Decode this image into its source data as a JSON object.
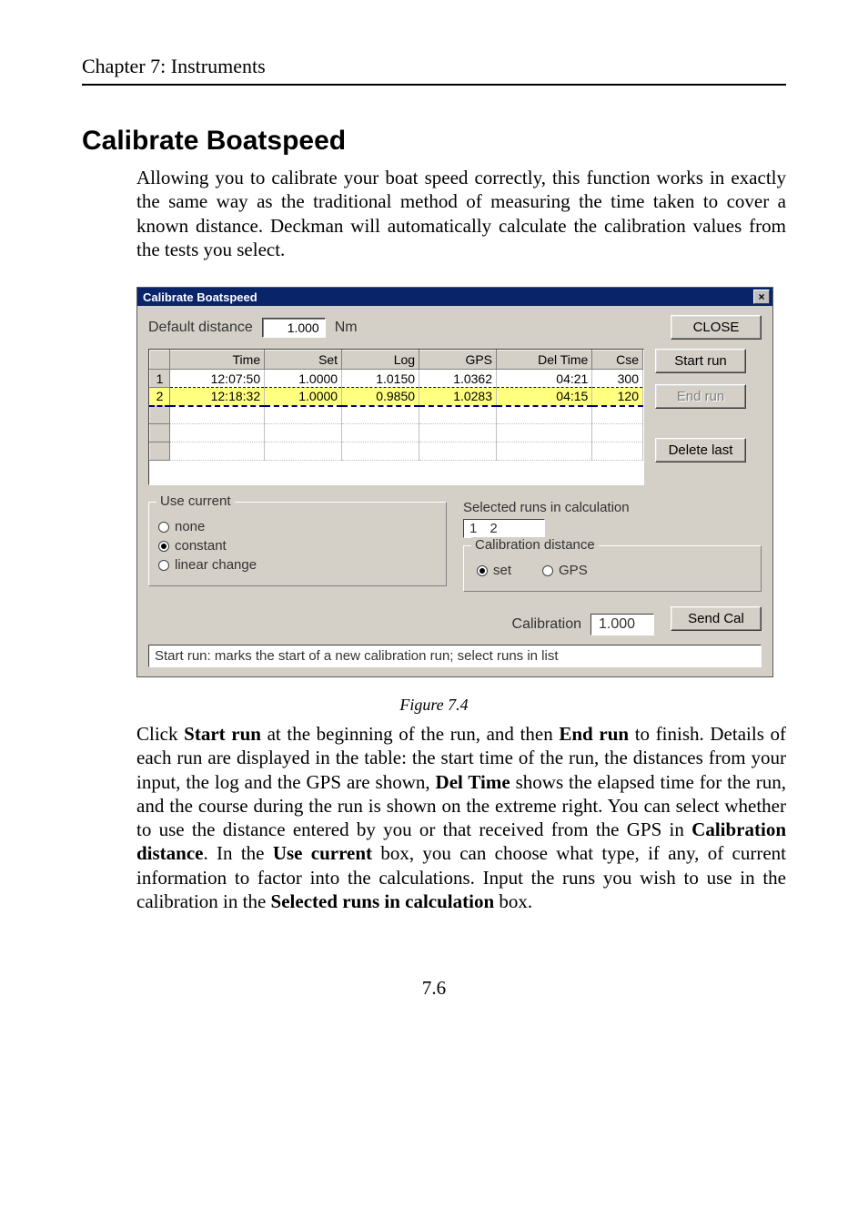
{
  "page": {
    "chapter_header": "Chapter 7: Instruments",
    "heading": "Calibrate Boatspeed",
    "intro": "Allowing you to calibrate your boat speed correctly, this function works in exactly the same way as the traditional method of measuring the time taken to cover a known distance. Deckman will automatically calculate the calibration values from the tests you select.",
    "figure_caption": "Figure 7.4",
    "body": "Click <b>Start run</b> at the beginning of the run, and then <b>End run</b> to finish. Details of each run are displayed in the table: the start time of the run, the distances from your input, the log and the GPS are shown, <b>Del Time</b> shows the elapsed time for the run, and the course during the run is shown on the extreme right. You can select whether to use the distance entered by you or that received from the GPS in <b>Calibration distance</b>. In the <b>Use current</b> box, you can choose what type, if any, of current information to factor into the calculations. Input the runs you wish to use in the calibration in the <b>Selected runs in calculation</b> box.",
    "page_number": "7.6"
  },
  "dialog": {
    "title": "Calibrate Boatspeed",
    "default_distance_label": "Default distance",
    "default_distance_value": "1.000",
    "default_distance_unit": "Nm",
    "close_label": "CLOSE",
    "buttons": {
      "start_run": "Start run",
      "end_run": "End run",
      "delete_last": "Delete last",
      "send_cal": "Send Cal"
    },
    "table": {
      "columns": [
        "",
        "Time",
        "Set",
        "Log",
        "GPS",
        "Del Time",
        "Cse"
      ],
      "rows": [
        {
          "n": "1",
          "time": "12:07:50",
          "set": "1.0000",
          "log": "1.0150",
          "gps": "1.0362",
          "del": "04:21",
          "cse": "300",
          "selected": false
        },
        {
          "n": "2",
          "time": "12:18:32",
          "set": "1.0000",
          "log": "0.9850",
          "gps": "1.0283",
          "del": "04:15",
          "cse": "120",
          "selected": true
        }
      ]
    },
    "use_current": {
      "legend": "Use current",
      "options": [
        {
          "label": "none",
          "checked": false
        },
        {
          "label": "constant",
          "checked": true
        },
        {
          "label": "linear change",
          "checked": false
        }
      ]
    },
    "selected_runs": {
      "label": "Selected runs in calculation",
      "values": [
        "1",
        "2"
      ]
    },
    "cal_distance": {
      "legend": "Calibration distance",
      "options": [
        {
          "label": "set",
          "checked": true
        },
        {
          "label": "GPS",
          "checked": false
        }
      ]
    },
    "calibration_label": "Calibration",
    "calibration_value": "1.000",
    "statusbar": "Start run: marks the start of a new calibration run; select runs in list"
  }
}
